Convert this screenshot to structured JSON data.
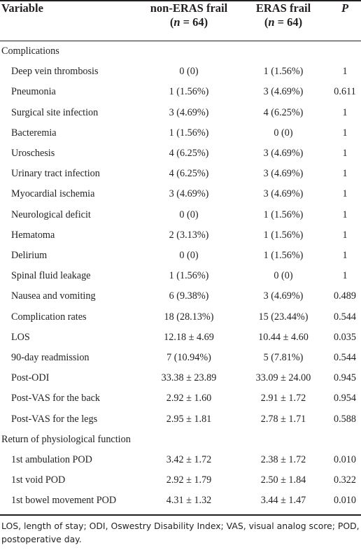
{
  "header": {
    "variable": "Variable",
    "group_a_line1": "non-ERAS frail",
    "group_a_n": "(n = 64)",
    "group_b_line1": "ERAS frail",
    "group_b_n": "(n = 64)",
    "p": "P"
  },
  "sections": [
    {
      "title": "Complications",
      "rows": [
        {
          "variable": "Deep vein thrombosis",
          "a": "0 (0)",
          "b": "1 (1.56%)",
          "p": "1"
        },
        {
          "variable": "Pneumonia",
          "a": "1 (1.56%)",
          "b": "3 (4.69%)",
          "p": "0.611"
        },
        {
          "variable": "Surgical site infection",
          "a": "3 (4.69%)",
          "b": "4 (6.25%)",
          "p": "1"
        },
        {
          "variable": "Bacteremia",
          "a": "1 (1.56%)",
          "b": "0 (0)",
          "p": "1"
        },
        {
          "variable": "Uroschesis",
          "a": "4 (6.25%)",
          "b": "3 (4.69%)",
          "p": "1"
        },
        {
          "variable": "Urinary tract infection",
          "a": "4 (6.25%)",
          "b": "3 (4.69%)",
          "p": "1"
        },
        {
          "variable": "Myocardial ischemia",
          "a": "3 (4.69%)",
          "b": "3 (4.69%)",
          "p": "1"
        },
        {
          "variable": "Neurological deficit",
          "a": "0 (0)",
          "b": "1 (1.56%)",
          "p": "1"
        },
        {
          "variable": "Hematoma",
          "a": "2 (3.13%)",
          "b": "1 (1.56%)",
          "p": "1"
        },
        {
          "variable": "Delirium",
          "a": "0 (0)",
          "b": "1 (1.56%)",
          "p": "1"
        },
        {
          "variable": "Spinal fluid leakage",
          "a": "1 (1.56%)",
          "b": "0 (0)",
          "p": "1"
        },
        {
          "variable": "Nausea and vomiting",
          "a": "6 (9.38%)",
          "b": "3 (4.69%)",
          "p": "0.489"
        },
        {
          "variable": "Complication rates",
          "a": "18 (28.13%)",
          "b": "15 (23.44%)",
          "p": "0.544"
        },
        {
          "variable": "LOS",
          "a": "12.18 ± 4.69",
          "b": "10.44 ± 4.60",
          "p": "0.035"
        },
        {
          "variable": "90-day readmission",
          "a": "7 (10.94%)",
          "b": "5 (7.81%)",
          "p": "0.544"
        },
        {
          "variable": "Post-ODI",
          "a": "33.38 ± 23.89",
          "b": "33.09 ± 24.00",
          "p": "0.945"
        },
        {
          "variable": "Post-VAS for the back",
          "a": "2.92 ± 1.60",
          "b": "2.91 ± 1.72",
          "p": "0.954"
        },
        {
          "variable": "Post-VAS for the legs",
          "a": "2.95 ± 1.81",
          "b": "2.78 ± 1.71",
          "p": "0.588"
        }
      ]
    },
    {
      "title": "Return of physiological function",
      "rows": [
        {
          "variable": "1st ambulation POD",
          "a": "3.42 ± 1.72",
          "b": "2.38 ± 1.72",
          "p": "0.010"
        },
        {
          "variable": "1st void POD",
          "a": "2.92 ± 1.79",
          "b": "2.50 ± 1.84",
          "p": "0.322"
        },
        {
          "variable": "1st bowel movement POD",
          "a": "4.31 ± 1.32",
          "b": "3.44 ± 1.47",
          "p": "0.010"
        }
      ]
    }
  ],
  "footnote": "LOS, length of stay; ODI, Oswestry Disability Index; VAS, visual analog score; POD, postoperative day."
}
